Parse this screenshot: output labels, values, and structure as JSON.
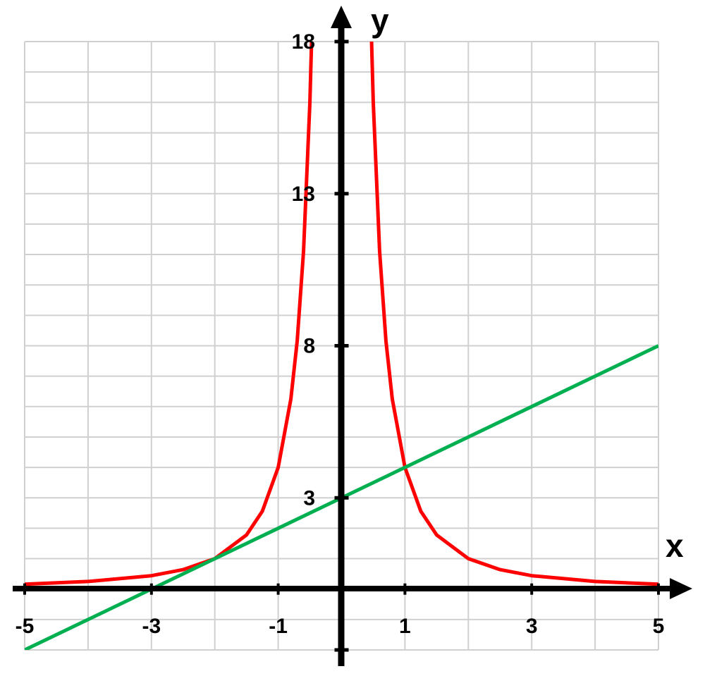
{
  "chart_data": {
    "type": "line",
    "xlabel": "x",
    "ylabel": "y",
    "xlim": [
      -5,
      5
    ],
    "ylim": [
      -2,
      18
    ],
    "x_ticks": [
      -5,
      -3,
      -1,
      1,
      3,
      5
    ],
    "x_tick_labels": [
      "-5",
      "-3",
      "-1",
      "1",
      "3",
      "5"
    ],
    "y_ticks": [
      3,
      8,
      13,
      18
    ],
    "y_tick_labels": [
      "3",
      "8",
      "13",
      "18"
    ],
    "grid": true,
    "grid_step_x": 1,
    "grid_step_y": 1,
    "series": [
      {
        "color": "#ff0000",
        "x": [
          -5,
          -4,
          -3,
          -2.5,
          -2,
          -1.5,
          -1.25,
          -1,
          -0.8,
          -0.7,
          -0.6,
          -0.5,
          -0.45,
          -0.42,
          0.42,
          0.45,
          0.5,
          0.6,
          0.7,
          0.8,
          1,
          1.25,
          1.5,
          2,
          2.5,
          3,
          4,
          5
        ],
        "y": [
          0.16,
          0.25,
          0.44,
          0.64,
          1.0,
          1.78,
          2.56,
          4.0,
          6.25,
          8.16,
          11.11,
          16.0,
          19.75,
          22.68,
          22.68,
          19.75,
          16.0,
          11.11,
          8.16,
          6.25,
          4.0,
          2.56,
          1.78,
          1.0,
          0.64,
          0.44,
          0.25,
          0.16
        ]
      },
      {
        "color": "#00b050",
        "x": [
          -5,
          5
        ],
        "y": [
          -2,
          8
        ]
      }
    ]
  }
}
